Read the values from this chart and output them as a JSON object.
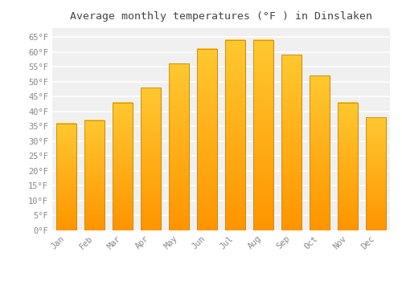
{
  "months": [
    "Jan",
    "Feb",
    "Mar",
    "Apr",
    "May",
    "Jun",
    "Jul",
    "Aug",
    "Sep",
    "Oct",
    "Nov",
    "Dec"
  ],
  "values": [
    36,
    37,
    43,
    48,
    56,
    61,
    64,
    64,
    59,
    52,
    43,
    38
  ],
  "bar_color_top": "#FFC830",
  "bar_color_bottom": "#FF9500",
  "bar_edge_color": "#CC8800",
  "title": "Average monthly temperatures (°F ) in Dinslaken",
  "title_fontsize": 9.5,
  "ylim": [
    0,
    68
  ],
  "yticks": [
    0,
    5,
    10,
    15,
    20,
    25,
    30,
    35,
    40,
    45,
    50,
    55,
    60,
    65
  ],
  "ytick_labels": [
    "0°F",
    "5°F",
    "10°F",
    "15°F",
    "20°F",
    "25°F",
    "30°F",
    "35°F",
    "40°F",
    "45°F",
    "50°F",
    "55°F",
    "60°F",
    "65°F"
  ],
  "background_color": "#ffffff",
  "plot_bg_color": "#f0f0f0",
  "grid_color": "#ffffff",
  "tick_label_color": "#888888",
  "title_color": "#444444",
  "tick_fontsize": 7.5,
  "bar_width": 0.7,
  "figsize": [
    5.0,
    3.5
  ],
  "dpi": 100
}
